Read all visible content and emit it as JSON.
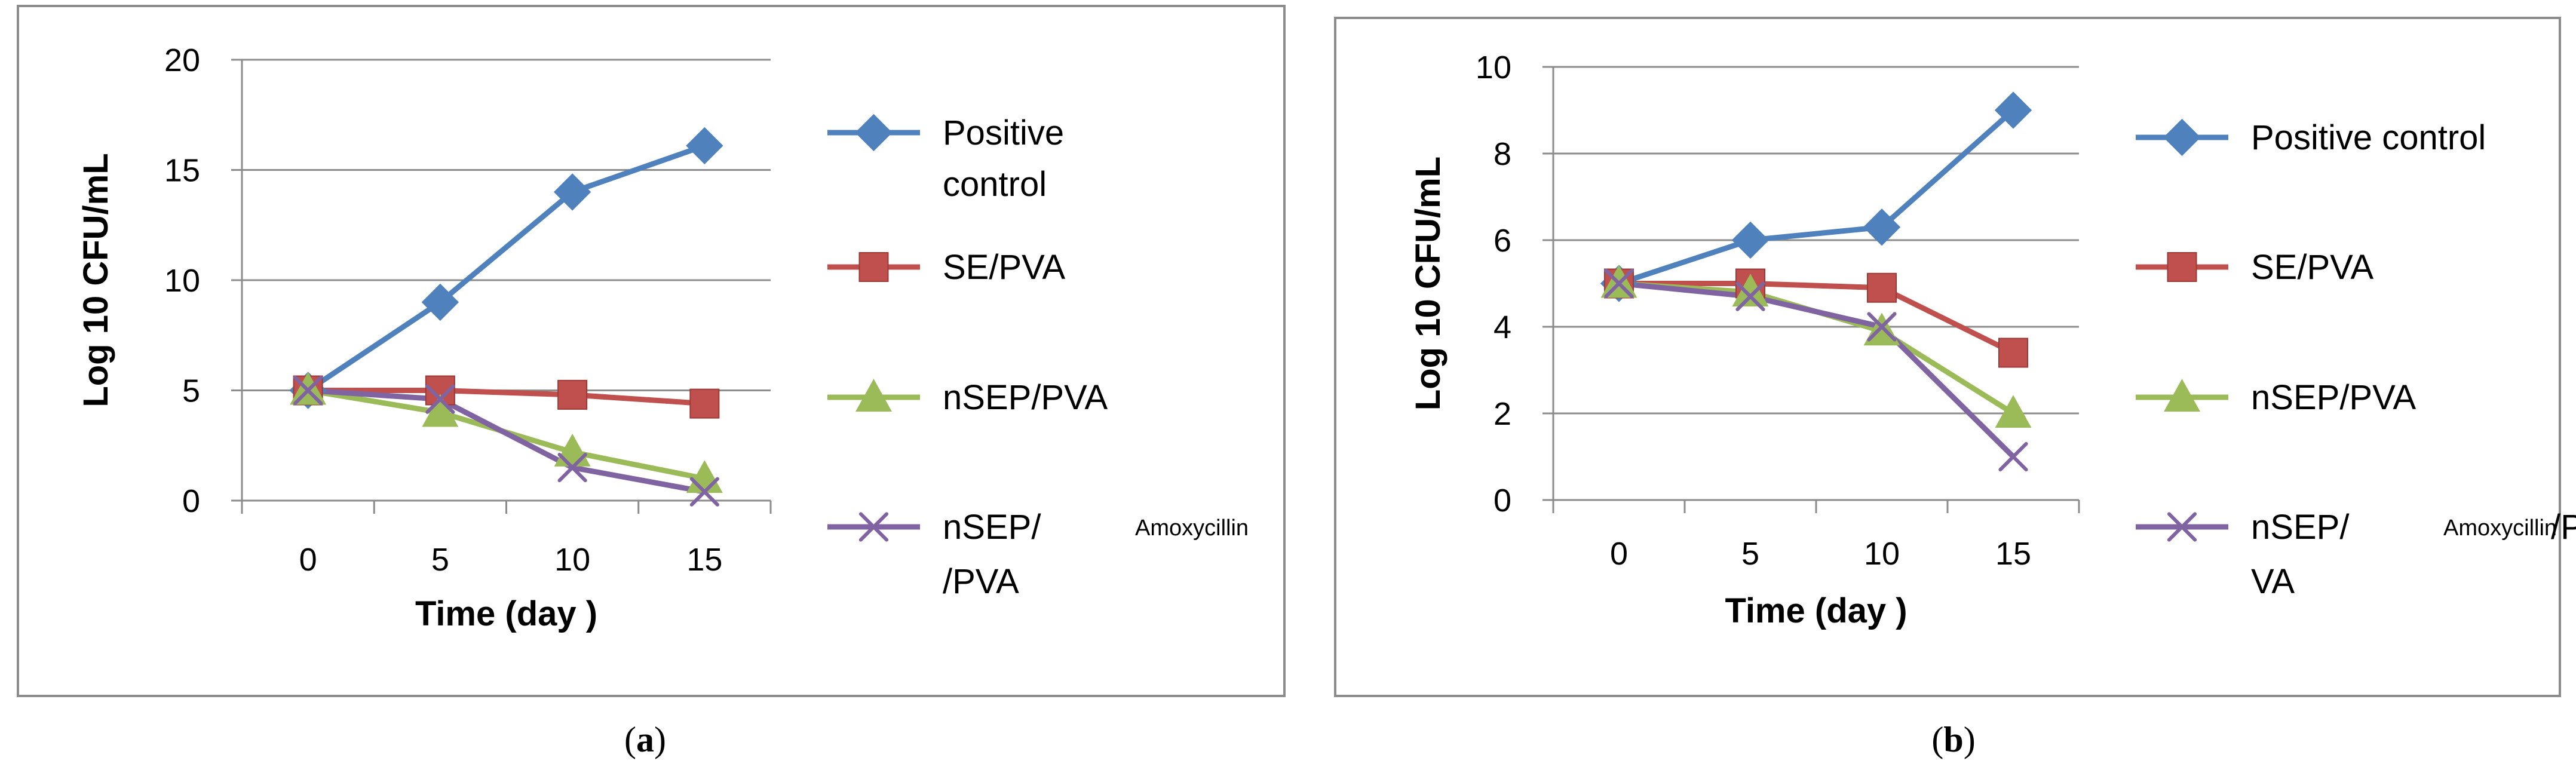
{
  "chart_data": [
    {
      "type": "line",
      "panel_label": "a",
      "x": [
        0,
        5,
        10,
        15
      ],
      "xlabel": "Time (day  )",
      "ylabel": "Log 10 CFU/mL",
      "ylim": [
        0,
        20
      ],
      "yticks": [
        0,
        5,
        10,
        15,
        20
      ],
      "grid": "horizontal",
      "legend_position": "right",
      "series": [
        {
          "name": "Positive control",
          "legend_lines": [
            "Positive",
            "control"
          ],
          "color": "#4F81BD",
          "marker": "diamond",
          "values": [
            5,
            9,
            14,
            16.1
          ]
        },
        {
          "name": "SE/PVA",
          "legend_lines": [
            "SE/PVA"
          ],
          "color": "#C0504D",
          "marker": "square",
          "values": [
            5,
            5,
            4.8,
            4.4
          ]
        },
        {
          "name": "nSEP/PVA",
          "legend_lines": [
            "nSEP/PVA"
          ],
          "color": "#9BBB59",
          "marker": "triangle",
          "values": [
            5,
            4,
            2.2,
            1.0
          ]
        },
        {
          "name": "nSEP/ Amoxycillin /PVA",
          "legend_lines": [
            "nSEP/",
            "/PVA"
          ],
          "legend_small": "Amoxycillin",
          "color": "#8064A2",
          "marker": "x",
          "values": [
            5,
            4.6,
            1.5,
            0.4
          ]
        }
      ]
    },
    {
      "type": "line",
      "panel_label": "b",
      "x": [
        0,
        5,
        10,
        15
      ],
      "xlabel": "Time (day  )",
      "ylabel": "Log 10 CFU/mL",
      "ylim": [
        0,
        10
      ],
      "yticks": [
        0,
        2,
        4,
        6,
        8,
        10
      ],
      "grid": "horizontal",
      "legend_position": "right",
      "series": [
        {
          "name": "Positive control",
          "legend_lines": [
            "Positive control"
          ],
          "color": "#4F81BD",
          "marker": "diamond",
          "values": [
            5,
            6,
            6.3,
            9
          ]
        },
        {
          "name": "SE/PVA",
          "legend_lines": [
            "SE/PVA"
          ],
          "color": "#C0504D",
          "marker": "square",
          "values": [
            5,
            5,
            4.9,
            3.4
          ]
        },
        {
          "name": "nSEP/PVA",
          "legend_lines": [
            "nSEP/PVA"
          ],
          "color": "#9BBB59",
          "marker": "triangle",
          "values": [
            5,
            4.8,
            3.9,
            2.0
          ]
        },
        {
          "name": "nSEP/ Amoxycillin /PVA",
          "legend_lines": [
            "nSEP/",
            "/P",
            "VA"
          ],
          "legend_small": "Amoxycillin",
          "color": "#8064A2",
          "marker": "x",
          "values": [
            5,
            4.7,
            4.0,
            1.0
          ]
        }
      ]
    }
  ],
  "captions": [
    {
      "open": "(",
      "label": "a",
      "close": ")"
    },
    {
      "open": "(",
      "label": "b",
      "close": ")"
    }
  ]
}
